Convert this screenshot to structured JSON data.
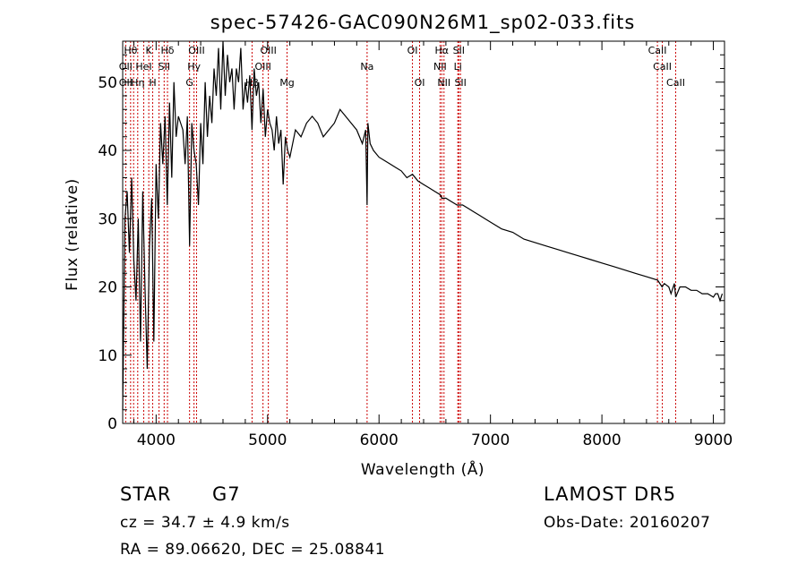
{
  "chart_data": {
    "type": "line",
    "title": "spec-57426-GAC090N26M1_sp02-033.fits",
    "xlabel": "Wavelength (Å)",
    "ylabel": "Flux (relative)",
    "xlim": [
      3700,
      9100
    ],
    "ylim": [
      0,
      56
    ],
    "xticks": [
      4000,
      5000,
      6000,
      7000,
      8000,
      9000
    ],
    "yticks": [
      0,
      10,
      20,
      30,
      40,
      50
    ],
    "grid": false,
    "series": [
      {
        "x": [
          3700,
          3720,
          3740,
          3760,
          3780,
          3800,
          3820,
          3840,
          3860,
          3880,
          3900,
          3920,
          3940,
          3960,
          3980,
          4000,
          4020,
          4040,
          4060,
          4080,
          4100,
          4120,
          4140,
          4160,
          4180,
          4200,
          4220,
          4240,
          4260,
          4280,
          4300,
          4320,
          4340,
          4360,
          4380,
          4400,
          4420,
          4440,
          4460,
          4480,
          4500,
          4520,
          4540,
          4560,
          4580,
          4600,
          4620,
          4640,
          4660,
          4680,
          4700,
          4720,
          4740,
          4760,
          4780,
          4800,
          4820,
          4840,
          4860,
          4880,
          4900,
          4920,
          4940,
          4960,
          4980,
          5000,
          5020,
          5040,
          5060,
          5080,
          5100,
          5120,
          5140,
          5160,
          5180,
          5200,
          5250,
          5300,
          5350,
          5400,
          5450,
          5500,
          5550,
          5600,
          5650,
          5700,
          5750,
          5800,
          5850,
          5880,
          5893,
          5900,
          5920,
          5950,
          6000,
          6050,
          6100,
          6150,
          6200,
          6250,
          6300,
          6350,
          6400,
          6450,
          6500,
          6550,
          6563,
          6600,
          6650,
          6700,
          6750,
          6800,
          6850,
          6900,
          6950,
          7000,
          7100,
          7200,
          7300,
          7400,
          7500,
          7600,
          7700,
          7800,
          7900,
          8000,
          8100,
          8200,
          8300,
          8400,
          8500,
          8540,
          8560,
          8600,
          8620,
          8650,
          8662,
          8700,
          8750,
          8800,
          8850,
          8900,
          8950,
          9000,
          9020,
          9040,
          9060,
          9080
        ],
        "y": [
          2,
          30,
          34,
          25,
          36,
          24,
          18,
          30,
          12,
          34,
          20,
          8,
          26,
          33,
          12,
          38,
          30,
          44,
          38,
          45,
          32,
          47,
          36,
          50,
          42,
          45,
          44,
          43,
          38,
          45,
          26,
          44,
          40,
          38,
          32,
          44,
          38,
          50,
          42,
          48,
          44,
          52,
          48,
          55,
          46,
          56,
          48,
          54,
          50,
          52,
          46,
          52,
          50,
          55,
          46,
          50,
          47,
          51,
          43,
          52,
          48,
          50,
          44,
          49,
          42,
          46,
          44,
          43,
          40,
          45,
          41,
          43,
          35,
          42,
          40,
          39,
          43,
          42,
          44,
          45,
          44,
          42,
          43,
          44,
          46,
          45,
          44,
          43,
          41,
          43,
          32,
          44,
          41,
          40,
          39,
          38.5,
          38,
          37.5,
          37,
          36,
          36.5,
          35.5,
          35,
          34.5,
          34,
          33.5,
          33,
          33,
          32.5,
          32,
          32,
          31.5,
          31,
          30.5,
          30,
          29.5,
          28.5,
          28,
          27,
          26.5,
          26,
          25.5,
          25,
          24.5,
          24,
          23.5,
          23,
          22.5,
          22,
          21.5,
          21,
          20,
          20.5,
          20,
          19,
          20.5,
          18.5,
          20,
          20,
          19.5,
          19.5,
          19,
          19,
          18.5,
          19,
          19,
          18,
          19
        ]
      }
    ],
    "lines_rest": [
      3727,
      3771,
      3798,
      3835,
      3889,
      3934,
      3969,
      4026,
      4072,
      4102,
      4300,
      4340,
      4363,
      4861,
      4959,
      5007,
      5175,
      5893,
      6300,
      6364,
      6548,
      6563,
      6583,
      6707,
      6716,
      6731,
      8498,
      8542,
      8662
    ],
    "line_labels": [
      {
        "t": "Hθ",
        "x": 3771,
        "row": 0
      },
      {
        "t": "K",
        "x": 3934,
        "row": 0
      },
      {
        "t": "Hδ",
        "x": 4102,
        "row": 0
      },
      {
        "t": "OIII",
        "x": 4363,
        "row": 0
      },
      {
        "t": "OIII",
        "x": 5007,
        "row": 0
      },
      {
        "t": "OI",
        "x": 6300,
        "row": 0
      },
      {
        "t": "Hα",
        "x": 6563,
        "row": 0
      },
      {
        "t": "SII",
        "x": 6716,
        "row": 0
      },
      {
        "t": "CaII",
        "x": 8498,
        "row": 0
      },
      {
        "t": "OII",
        "x": 3727,
        "row": 1
      },
      {
        "t": "HeI",
        "x": 3889,
        "row": 1
      },
      {
        "t": "SII",
        "x": 4072,
        "row": 1
      },
      {
        "t": "Hγ",
        "x": 4340,
        "row": 1
      },
      {
        "t": "OIII",
        "x": 4959,
        "row": 1
      },
      {
        "t": "Na",
        "x": 5893,
        "row": 1
      },
      {
        "t": "NII",
        "x": 6548,
        "row": 1
      },
      {
        "t": "Li",
        "x": 6707,
        "row": 1
      },
      {
        "t": "CaII",
        "x": 8542,
        "row": 1
      },
      {
        "t": "OII",
        "x": 3727,
        "row": 2
      },
      {
        "t": "Hη",
        "x": 3835,
        "row": 2
      },
      {
        "t": "H",
        "x": 3969,
        "row": 2
      },
      {
        "t": "G",
        "x": 4300,
        "row": 2
      },
      {
        "t": "Hβ",
        "x": 4861,
        "row": 2
      },
      {
        "t": "Mg",
        "x": 5175,
        "row": 2
      },
      {
        "t": "OI",
        "x": 6364,
        "row": 2
      },
      {
        "t": "NII",
        "x": 6583,
        "row": 2
      },
      {
        "t": "SII",
        "x": 6731,
        "row": 2
      },
      {
        "t": "CaII",
        "x": 8662,
        "row": 2
      }
    ]
  },
  "footer": {
    "class_label": "STAR",
    "subclass": "G7",
    "cz": "cz = 34.7 ± 4.9 km/s",
    "radec": "RA =  89.06620, DEC =  25.08841",
    "survey": "LAMOST DR5",
    "obs_date": "Obs-Date: 20160207"
  },
  "colors": {
    "spectrum": "#000000",
    "line_marker": "#cc0000",
    "axes": "#000000"
  }
}
